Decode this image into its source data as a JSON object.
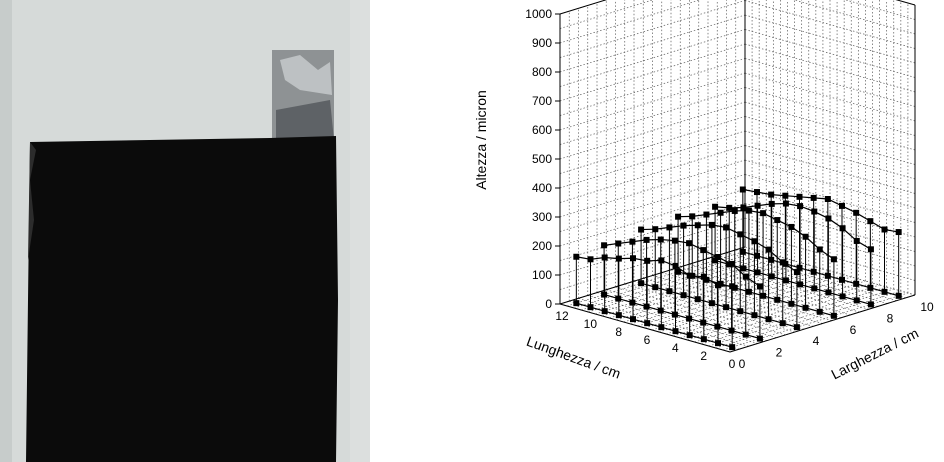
{
  "photo": {
    "background_color": "#d6dad9",
    "frame_color": "#c7cccb",
    "sample_color": "#0b0b0b",
    "foil_color": "#8e9294"
  },
  "chart_data": {
    "type": "scatter",
    "subtype": "3d-scatter-lines",
    "x_axis": {
      "label": "Lunghezza / cm",
      "range": [
        0,
        12
      ],
      "ticks": [
        "0",
        "2",
        "4",
        "6",
        "8",
        "10",
        "12"
      ]
    },
    "y_axis": {
      "label": "Larghezza / cm",
      "range": [
        0,
        10
      ],
      "ticks": [
        "0",
        "2",
        "4",
        "6",
        "8",
        "10"
      ]
    },
    "z_axis": {
      "label": "Altezza / micron",
      "range": [
        0,
        1000
      ],
      "ticks": [
        "0",
        "100",
        "200",
        "300",
        "400",
        "500",
        "600",
        "700",
        "800",
        "900",
        "1000"
      ]
    },
    "grid": true,
    "marker": "filled-square",
    "marker_color": "#000000",
    "profiles": [
      {
        "width_cm": 0.5,
        "heights": [
          210,
          200,
          215,
          205,
          225,
          230,
          215,
          210,
          195,
          185,
          165,
          160
        ]
      },
      {
        "width_cm": 2,
        "heights": [
          180,
          200,
          230,
          240,
          250,
          260,
          255,
          245,
          230,
          210,
          190,
          170
        ]
      },
      {
        "width_cm": 4,
        "heights": [
          190,
          210,
          240,
          255,
          265,
          275,
          270,
          255,
          240,
          220,
          200,
          185
        ]
      },
      {
        "width_cm": 6,
        "heights": [
          195,
          215,
          245,
          265,
          275,
          285,
          280,
          265,
          245,
          225,
          205,
          190
        ]
      },
      {
        "width_cm": 8,
        "heights": [
          190,
          205,
          235,
          255,
          265,
          270,
          265,
          250,
          230,
          210,
          195,
          185
        ]
      },
      {
        "width_cm": 9.5,
        "heights": [
          220,
          215,
          230,
          245,
          255,
          265,
          255,
          245,
          235,
          225,
          220,
          215
        ]
      }
    ]
  }
}
